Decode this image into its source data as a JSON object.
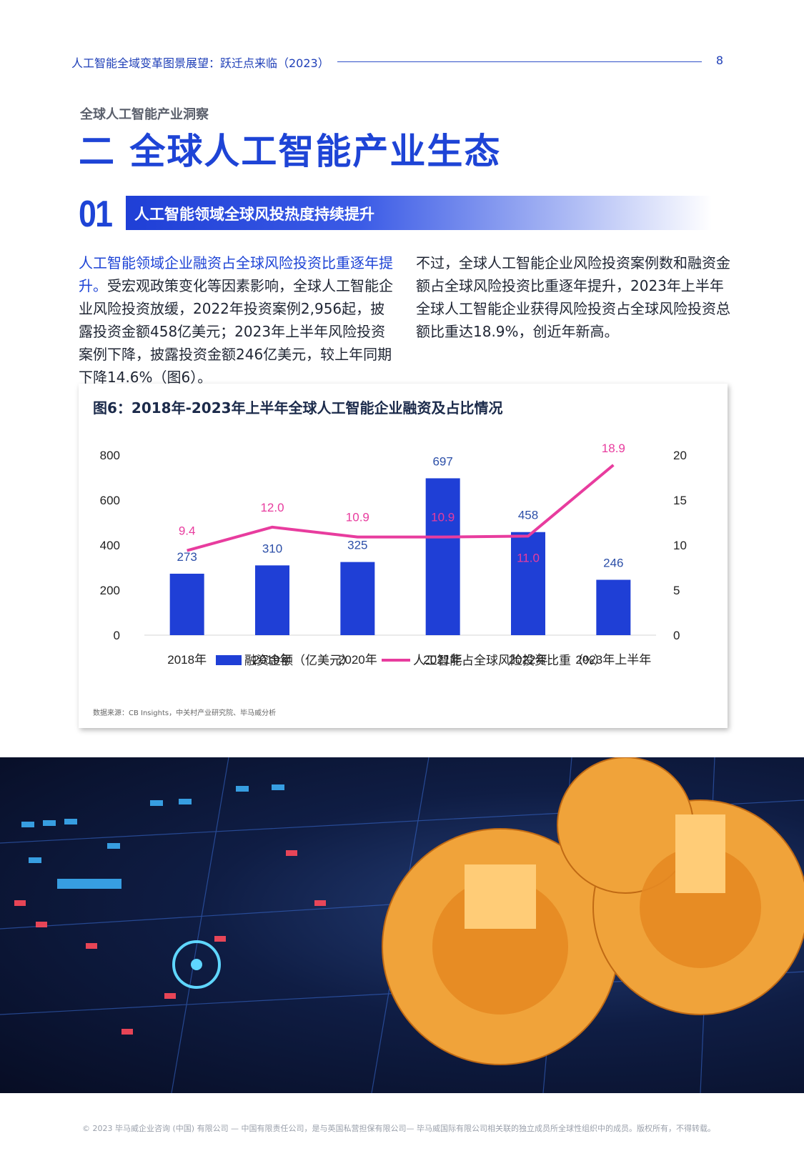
{
  "header": {
    "title": "人工智能全域变革图景展望：跃迁点来临（2023）",
    "page_number": "8"
  },
  "section": {
    "kicker": "全球人工智能产业洞察",
    "title": "二  全球人工智能产业生态"
  },
  "subsection": {
    "number": "01",
    "title": "人工智能领域全球风投热度持续提升"
  },
  "body": {
    "left_lead": "人工智能领域企业融资占全球风险投资比重逐年提升。",
    "left_rest": "受宏观政策变化等因素影响，全球人工智能企业风险投资放缓，2022年投资案例2,956起，披露投资金额458亿美元；2023年上半年风险投资案例下降，披露投资金额246亿美元，较上年同期下降14.6%（图6）。",
    "right": "不过，全球人工智能企业风险投资案例数和融资金额占全球风险投资比重逐年提升，2023年上半年全球人工智能企业获得风险投资占全球风险投资总额比重达18.9%，创近年新高。"
  },
  "chart": {
    "title": "图6：2018年-2023年上半年全球人工智能企业融资及占比情况",
    "source": "数据来源：CB Insights，中关村产业研究院、毕马威分析"
  },
  "chart_data": {
    "type": "bar",
    "title": "图6：2018年-2023年上半年全球人工智能企业融资及占比情况",
    "categories": [
      "2018年",
      "2019年",
      "2020年",
      "2021年",
      "2022年",
      "2023年上半年"
    ],
    "series": [
      {
        "name": "融资金额（亿美元）",
        "type": "bar",
        "axis": "left",
        "color": "#1f3fd6",
        "values": [
          273,
          310,
          325,
          697,
          458,
          246
        ]
      },
      {
        "name": "人工智能占全球风险投资比重（%）",
        "type": "line",
        "axis": "right",
        "color": "#e83c9e",
        "values": [
          9.4,
          12.0,
          10.9,
          10.9,
          11.0,
          18.9
        ]
      }
    ],
    "y_left": {
      "range": [
        0,
        800
      ],
      "ticks": [
        "0",
        "200",
        "400",
        "600",
        "800"
      ]
    },
    "y_right": {
      "range": [
        0,
        20
      ],
      "ticks": [
        "0",
        "5",
        "10",
        "15",
        "20"
      ]
    },
    "line_labels": [
      "9.4",
      "12.0",
      "10.9",
      "10.9",
      "11.0",
      "18.9"
    ],
    "bar_labels": [
      "273",
      "310",
      "325",
      "697",
      "458",
      "246"
    ],
    "legend": "bottom",
    "grid": false
  },
  "footer": {
    "copyright": "© 2023 毕马威企业咨询 (中国) 有限公司 — 中国有限责任公司，是与英国私营担保有限公司— 毕马威国际有限公司相关联的独立成员所全球性组织中的成员。版权所有，不得转载。"
  }
}
